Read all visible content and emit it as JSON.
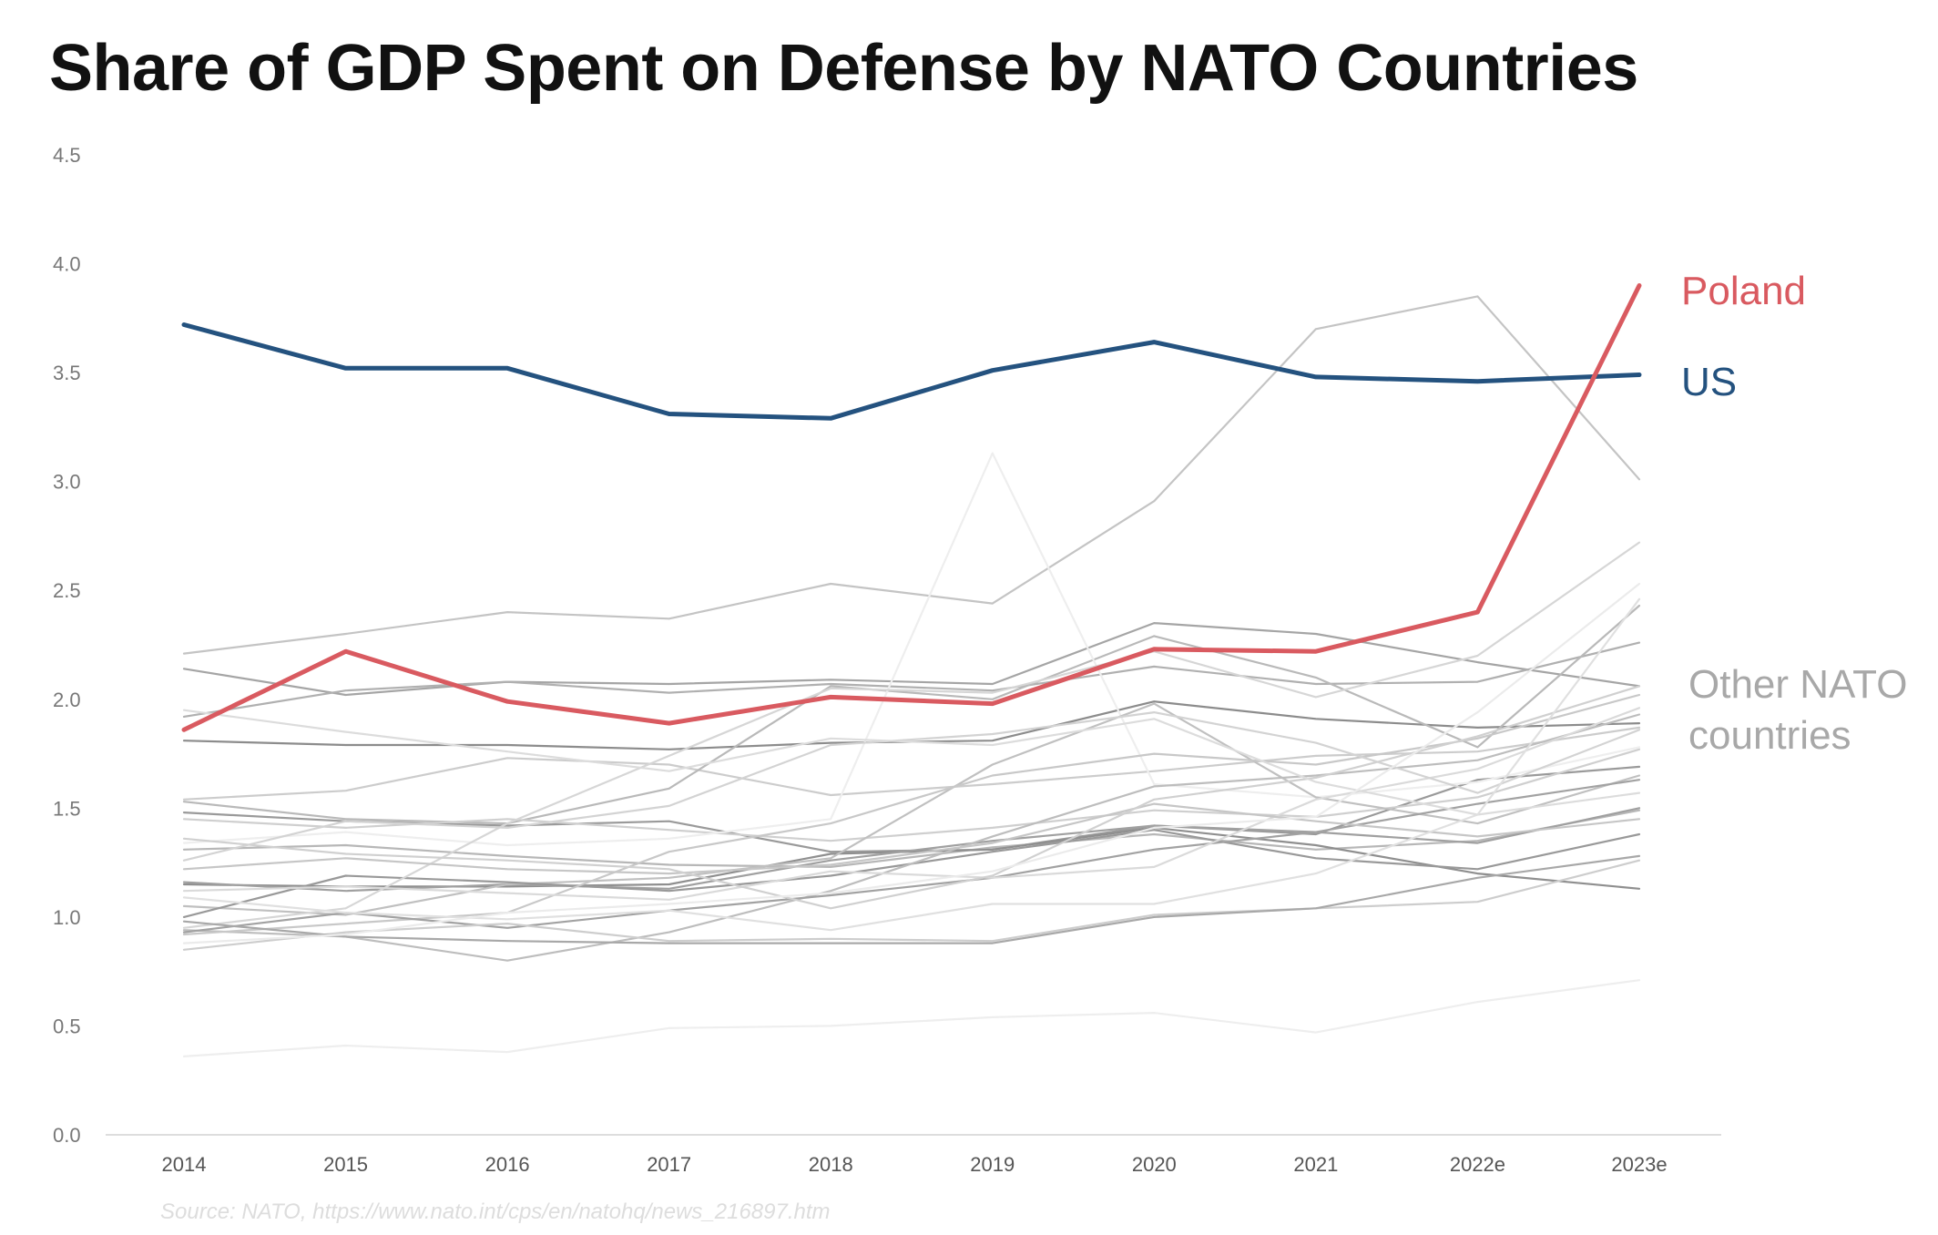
{
  "chart_data": {
    "type": "line",
    "title": "Share of GDP Spent on Defense by NATO Countries",
    "x": [
      "2014",
      "2015",
      "2016",
      "2017",
      "2018",
      "2019",
      "2020",
      "2021",
      "2022e",
      "2023e"
    ],
    "ylim": [
      0,
      4.5
    ],
    "yticks": [
      "0.0",
      "0.5",
      "1.0",
      "1.5",
      "2.0",
      "2.5",
      "3.0",
      "3.5",
      "4.0",
      "4.5"
    ],
    "grid": false,
    "legend": "direct labels at right",
    "source": "Source: NATO, https://www.nato.int/cps/en/natohq/news_216897.htm",
    "highlight": [
      {
        "name": "Poland",
        "color": "#d95a60",
        "values": [
          1.86,
          2.22,
          1.99,
          1.89,
          2.01,
          1.98,
          2.23,
          2.22,
          2.4,
          3.9
        ]
      },
      {
        "name": "US",
        "color": "#24527f",
        "values": [
          3.72,
          3.52,
          3.52,
          3.31,
          3.29,
          3.51,
          3.64,
          3.48,
          3.46,
          3.49
        ]
      }
    ],
    "other_label": "Other NATO countries",
    "other_label_lines": [
      "Other NATO",
      "countries"
    ],
    "other_color": "#a8a8a8",
    "others": [
      {
        "values": [
          2.21,
          2.3,
          2.4,
          2.37,
          2.53,
          2.44,
          2.91,
          3.7,
          3.85,
          3.01
        ],
        "color": "#c4c4c4"
      },
      {
        "values": [
          2.14,
          2.02,
          2.08,
          2.07,
          2.09,
          2.07,
          2.35,
          2.3,
          2.17,
          2.06
        ],
        "color": "#a5a5a5"
      },
      {
        "values": [
          1.81,
          1.79,
          1.79,
          1.77,
          1.8,
          1.81,
          1.99,
          1.91,
          1.87,
          1.89
        ],
        "color": "#8c8c8c"
      },
      {
        "values": [
          1.92,
          2.04,
          2.08,
          2.03,
          2.07,
          2.04,
          2.15,
          2.07,
          2.08,
          2.26
        ],
        "color": "#b0b0b0"
      },
      {
        "values": [
          1.54,
          1.58,
          1.73,
          1.7,
          1.56,
          1.61,
          1.67,
          1.74,
          1.76,
          1.87
        ],
        "color": "#cccccc"
      },
      {
        "values": [
          1.53,
          1.45,
          1.43,
          1.59,
          2.06,
          2.0,
          2.29,
          2.1,
          1.78,
          2.43
        ],
        "color": "#b9b9b9"
      },
      {
        "values": [
          1.48,
          1.44,
          1.42,
          1.44,
          1.3,
          1.31,
          1.42,
          1.38,
          1.63,
          1.69
        ],
        "color": "#9a9a9a"
      },
      {
        "values": [
          1.45,
          1.41,
          1.45,
          1.4,
          1.35,
          1.41,
          1.49,
          1.46,
          1.55,
          1.77
        ],
        "color": "#cfcfcf"
      },
      {
        "values": [
          1.34,
          1.39,
          1.33,
          1.36,
          1.45,
          3.13,
          1.61,
          1.55,
          1.62,
          1.78
        ],
        "color": "#eeeeee"
      },
      {
        "values": [
          1.31,
          1.33,
          1.28,
          1.24,
          1.23,
          1.32,
          1.38,
          1.31,
          1.35,
          1.49
        ],
        "color": "#b7b7b7"
      },
      {
        "values": [
          1.15,
          1.14,
          1.14,
          1.15,
          1.29,
          1.31,
          1.41,
          1.33,
          1.2,
          1.13
        ],
        "color": "#8f8f8f"
      },
      {
        "values": [
          1.16,
          1.12,
          1.15,
          1.13,
          1.26,
          1.35,
          1.42,
          1.39,
          1.34,
          1.5
        ],
        "color": "#a0a0a0"
      },
      {
        "values": [
          1.05,
          1.01,
          1.15,
          1.18,
          1.27,
          1.7,
          1.98,
          1.55,
          1.43,
          1.65
        ],
        "color": "#c0c0c0"
      },
      {
        "values": [
          1.0,
          1.19,
          1.16,
          1.12,
          1.19,
          1.3,
          1.4,
          1.27,
          1.22,
          1.38
        ],
        "color": "#999999"
      },
      {
        "values": [
          0.95,
          1.04,
          1.43,
          1.74,
          2.05,
          2.03,
          2.22,
          2.01,
          2.2,
          2.72
        ],
        "color": "#d6d6d6"
      },
      {
        "values": [
          0.94,
          0.91,
          0.8,
          0.93,
          1.12,
          1.37,
          1.6,
          1.65,
          1.72,
          1.93
        ],
        "color": "#bdbdbd"
      },
      {
        "values": [
          0.92,
          0.97,
          1.02,
          1.3,
          1.43,
          1.65,
          1.75,
          1.7,
          1.82,
          2.02
        ],
        "color": "#c8c8c8"
      },
      {
        "values": [
          0.93,
          1.02,
          0.95,
          1.03,
          1.1,
          1.18,
          1.31,
          1.39,
          1.52,
          1.63
        ],
        "color": "#a2a2a2"
      },
      {
        "values": [
          0.85,
          0.93,
          0.97,
          0.89,
          0.9,
          0.89,
          1.01,
          1.04,
          1.07,
          1.26
        ],
        "color": "#cdcdcd"
      },
      {
        "values": [
          0.98,
          0.91,
          0.89,
          0.88,
          0.88,
          0.88,
          1.0,
          1.04,
          1.18,
          1.28
        ],
        "color": "#a8a8a8"
      },
      {
        "values": [
          1.12,
          1.14,
          1.11,
          1.08,
          1.21,
          1.18,
          1.23,
          1.54,
          1.68,
          1.96
        ],
        "color": "#dadada"
      },
      {
        "values": [
          1.22,
          1.27,
          1.22,
          1.2,
          1.24,
          1.34,
          1.52,
          1.44,
          1.37,
          1.45
        ],
        "color": "#c6c6c6"
      },
      {
        "values": [
          1.36,
          1.29,
          1.26,
          1.22,
          1.04,
          1.19,
          1.54,
          1.64,
          1.83,
          2.06
        ],
        "color": "#d0d0d0"
      },
      {
        "values": [
          1.26,
          1.44,
          1.41,
          1.51,
          1.79,
          1.84,
          1.94,
          1.8,
          1.57,
          1.86
        ],
        "color": "#d3d3d3"
      },
      {
        "values": [
          1.95,
          1.85,
          1.76,
          1.67,
          1.82,
          1.79,
          1.91,
          1.62,
          1.47,
          1.57
        ],
        "color": "#dcdcdc"
      },
      {
        "values": [
          1.09,
          1.02,
          0.99,
          1.03,
          0.94,
          1.06,
          1.06,
          1.2,
          1.47,
          2.46
        ],
        "color": "#e0e0e0"
      },
      {
        "values": [
          0.88,
          0.92,
          1.02,
          1.06,
          1.11,
          1.21,
          1.41,
          1.46,
          1.94,
          2.53
        ],
        "color": "#ebebeb"
      },
      {
        "values": [
          0.36,
          0.41,
          0.38,
          0.49,
          0.5,
          0.54,
          0.56,
          0.47,
          0.61,
          0.71
        ],
        "color": "#eeeeee"
      }
    ]
  }
}
